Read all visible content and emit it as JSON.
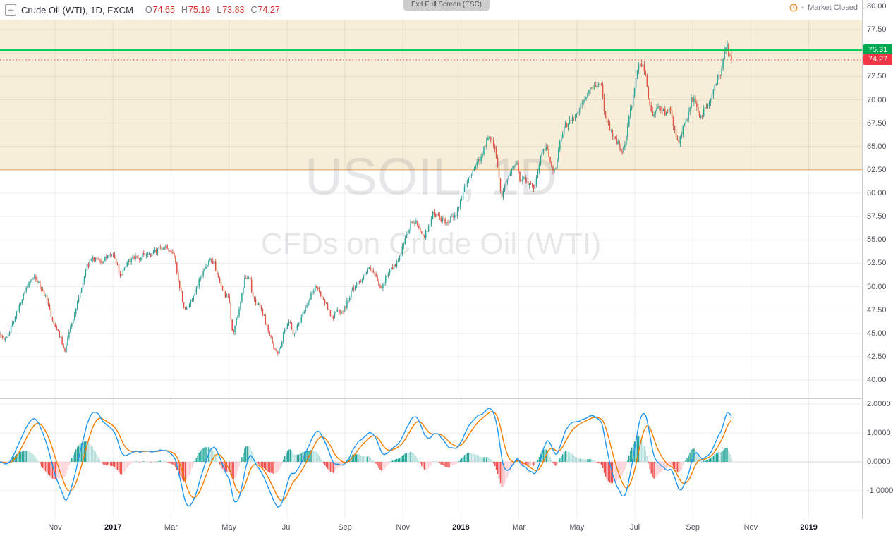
{
  "header": {
    "symbol_title": "Crude Oil (WTI), 1D, FXCM",
    "ohlc": {
      "o_label": "O",
      "o": "74.65",
      "h_label": "H",
      "h": "75.19",
      "l_label": "L",
      "l": "73.83",
      "c_label": "C",
      "c": "74.27"
    },
    "fullscreen_tooltip": "Exit Full Screen (ESC)",
    "market_status": "Market Closed",
    "market_status_bullet": "•",
    "market_status_color": "#f28e2a"
  },
  "watermark": {
    "line1": "USOIL, 1D",
    "line2": "CFDs on Crude Oil (WTI)"
  },
  "price_axis": {
    "ticks": [
      {
        "value": 80,
        "text": "80.00"
      },
      {
        "value": 77.5,
        "text": "77.50"
      },
      {
        "value": 72.5,
        "text": "72.50"
      },
      {
        "value": 70,
        "text": "70.00"
      },
      {
        "value": 67.5,
        "text": "67.50"
      },
      {
        "value": 65,
        "text": "65.00"
      },
      {
        "value": 62.5,
        "text": "62.50"
      },
      {
        "value": 60,
        "text": "60.00"
      },
      {
        "value": 57.5,
        "text": "57.50"
      },
      {
        "value": 55,
        "text": "55.00"
      },
      {
        "value": 52.5,
        "text": "52.50"
      },
      {
        "value": 50,
        "text": "50.00"
      },
      {
        "value": 47.5,
        "text": "47.50"
      },
      {
        "value": 45,
        "text": "45.00"
      },
      {
        "value": 42.5,
        "text": "42.50"
      },
      {
        "value": 40,
        "text": "40.00"
      }
    ],
    "badges": [
      {
        "text": "75.31",
        "value": 75.31,
        "color": "#00a94f"
      },
      {
        "text": "74.27",
        "value": 74.27,
        "color": "#f23645"
      }
    ]
  },
  "time_axis": {
    "labels": [
      {
        "text": "Nov",
        "t": 0
      },
      {
        "text": "2017",
        "t": 2,
        "year": true
      },
      {
        "text": "Mar",
        "t": 4
      },
      {
        "text": "May",
        "t": 6
      },
      {
        "text": "Jul",
        "t": 8
      },
      {
        "text": "Sep",
        "t": 10
      },
      {
        "text": "Nov",
        "t": 12
      },
      {
        "text": "2018",
        "t": 14,
        "year": true
      },
      {
        "text": "Mar",
        "t": 16
      },
      {
        "text": "May",
        "t": 18
      },
      {
        "text": "Jul",
        "t": 20
      },
      {
        "text": "Sep",
        "t": 22
      },
      {
        "text": "Nov",
        "t": 24
      },
      {
        "text": "2019",
        "t": 26,
        "year": true
      }
    ]
  },
  "chart_data": [
    {
      "type": "candlestick",
      "symbol": "USOIL",
      "interval": "1D",
      "exchange": "FXCM",
      "description": "CFDs on Crude Oil (WTI)",
      "ylim": [
        38,
        78.6
      ],
      "last_ohlc": [
        74.65,
        75.19,
        73.83,
        74.27
      ],
      "band": {
        "top": 80,
        "bottom": 62.5,
        "fill": "#f6eed8",
        "border": "#e0953f"
      },
      "levels": [
        {
          "value": 75.31,
          "color": "#00c853",
          "style": "solid",
          "width": 2
        },
        {
          "value": 74.27,
          "color": "#f23645",
          "style": "dotted",
          "width": 1
        }
      ],
      "colors": {
        "up": "#26a69a",
        "up_wick": "#1d7b72",
        "down": "#e35141",
        "down_wick": "#b03c30"
      },
      "anchors": [
        [
          -1.9,
          45.0
        ],
        [
          -1.72,
          44.2
        ],
        [
          -1.5,
          45.8
        ],
        [
          -1.28,
          47.6
        ],
        [
          -1.05,
          49.6
        ],
        [
          -0.85,
          50.6
        ],
        [
          -0.65,
          50.9
        ],
        [
          -0.5,
          49.8
        ],
        [
          -0.3,
          48.8
        ],
        [
          -0.12,
          46.8
        ],
        [
          0.05,
          45.4
        ],
        [
          0.2,
          44.4
        ],
        [
          0.33,
          43.1
        ],
        [
          0.45,
          44.6
        ],
        [
          0.6,
          46.4
        ],
        [
          0.75,
          47.9
        ],
        [
          0.9,
          49.6
        ],
        [
          1.05,
          51.9
        ],
        [
          1.25,
          52.9
        ],
        [
          1.45,
          53.1
        ],
        [
          1.65,
          52.6
        ],
        [
          1.85,
          53.7
        ],
        [
          2.05,
          53.2
        ],
        [
          2.25,
          51.1
        ],
        [
          2.45,
          52.4
        ],
        [
          2.65,
          53.1
        ],
        [
          2.85,
          52.9
        ],
        [
          3.05,
          53.5
        ],
        [
          3.3,
          53.4
        ],
        [
          3.55,
          54.0
        ],
        [
          3.8,
          54.2
        ],
        [
          4.0,
          53.8
        ],
        [
          4.15,
          52.7
        ],
        [
          4.3,
          49.9
        ],
        [
          4.45,
          47.7
        ],
        [
          4.6,
          47.9
        ],
        [
          4.75,
          48.6
        ],
        [
          4.95,
          50.4
        ],
        [
          5.15,
          52.0
        ],
        [
          5.35,
          52.9
        ],
        [
          5.5,
          52.5
        ],
        [
          5.65,
          50.6
        ],
        [
          5.85,
          49.2
        ],
        [
          6.0,
          48.6
        ],
        [
          6.12,
          44.9
        ],
        [
          6.25,
          46.3
        ],
        [
          6.4,
          48.6
        ],
        [
          6.55,
          50.8
        ],
        [
          6.7,
          51.1
        ],
        [
          6.82,
          48.9
        ],
        [
          6.95,
          48.3
        ],
        [
          7.1,
          47.7
        ],
        [
          7.25,
          46.3
        ],
        [
          7.4,
          44.9
        ],
        [
          7.55,
          43.4
        ],
        [
          7.68,
          42.7
        ],
        [
          7.8,
          43.9
        ],
        [
          7.95,
          45.8
        ],
        [
          8.1,
          46.1
        ],
        [
          8.22,
          44.6
        ],
        [
          8.35,
          45.6
        ],
        [
          8.5,
          46.7
        ],
        [
          8.65,
          47.9
        ],
        [
          8.8,
          49.0
        ],
        [
          9.0,
          50.1
        ],
        [
          9.15,
          49.2
        ],
        [
          9.3,
          48.3
        ],
        [
          9.45,
          47.4
        ],
        [
          9.6,
          46.6
        ],
        [
          9.75,
          47.6
        ],
        [
          9.9,
          47.2
        ],
        [
          10.05,
          48.1
        ],
        [
          10.2,
          49.4
        ],
        [
          10.4,
          50.3
        ],
        [
          10.6,
          50.9
        ],
        [
          10.8,
          51.9
        ],
        [
          10.95,
          51.6
        ],
        [
          11.1,
          50.7
        ],
        [
          11.25,
          49.6
        ],
        [
          11.4,
          50.9
        ],
        [
          11.55,
          51.9
        ],
        [
          11.7,
          52.2
        ],
        [
          11.85,
          52.7
        ],
        [
          12.0,
          54.3
        ],
        [
          12.15,
          55.6
        ],
        [
          12.3,
          57.0
        ],
        [
          12.45,
          56.8
        ],
        [
          12.6,
          56.0
        ],
        [
          12.75,
          55.3
        ],
        [
          12.9,
          56.7
        ],
        [
          13.05,
          57.9
        ],
        [
          13.2,
          57.5
        ],
        [
          13.35,
          57.2
        ],
        [
          13.5,
          56.6
        ],
        [
          13.65,
          57.2
        ],
        [
          13.8,
          57.5
        ],
        [
          13.95,
          59.0
        ],
        [
          14.1,
          60.2
        ],
        [
          14.25,
          61.4
        ],
        [
          14.45,
          62.8
        ],
        [
          14.65,
          63.7
        ],
        [
          14.85,
          65.2
        ],
        [
          15.0,
          66.2
        ],
        [
          15.1,
          65.6
        ],
        [
          15.25,
          63.6
        ],
        [
          15.4,
          59.3
        ],
        [
          15.5,
          60.9
        ],
        [
          15.65,
          61.7
        ],
        [
          15.8,
          62.7
        ],
        [
          15.95,
          63.1
        ],
        [
          16.05,
          61.2
        ],
        [
          16.2,
          61.8
        ],
        [
          16.35,
          61.0
        ],
        [
          16.5,
          60.5
        ],
        [
          16.65,
          62.4
        ],
        [
          16.8,
          64.4
        ],
        [
          16.95,
          65.0
        ],
        [
          17.1,
          63.2
        ],
        [
          17.25,
          62.3
        ],
        [
          17.4,
          65.1
        ],
        [
          17.55,
          66.8
        ],
        [
          17.7,
          67.7
        ],
        [
          17.85,
          68.1
        ],
        [
          18.0,
          68.4
        ],
        [
          18.15,
          69.3
        ],
        [
          18.35,
          70.6
        ],
        [
          18.55,
          71.3
        ],
        [
          18.7,
          71.9
        ],
        [
          18.85,
          71.3
        ],
        [
          18.95,
          68.9
        ],
        [
          19.1,
          67.3
        ],
        [
          19.25,
          66.1
        ],
        [
          19.4,
          65.4
        ],
        [
          19.55,
          64.3
        ],
        [
          19.7,
          65.6
        ],
        [
          19.8,
          68.2
        ],
        [
          19.95,
          70.3
        ],
        [
          20.1,
          73.2
        ],
        [
          20.2,
          73.9
        ],
        [
          20.35,
          73.3
        ],
        [
          20.45,
          70.6
        ],
        [
          20.6,
          68.1
        ],
        [
          20.75,
          69.4
        ],
        [
          20.9,
          68.9
        ],
        [
          21.05,
          68.7
        ],
        [
          21.2,
          68.9
        ],
        [
          21.35,
          67.1
        ],
        [
          21.5,
          65.2
        ],
        [
          21.65,
          66.8
        ],
        [
          21.8,
          68.1
        ],
        [
          21.95,
          69.9
        ],
        [
          22.1,
          69.8
        ],
        [
          22.25,
          68.0
        ],
        [
          22.4,
          68.9
        ],
        [
          22.55,
          69.6
        ],
        [
          22.7,
          70.9
        ],
        [
          22.85,
          71.9
        ],
        [
          23.0,
          73.4
        ],
        [
          23.1,
          75.6
        ],
        [
          23.17,
          76.3
        ],
        [
          23.25,
          74.8
        ],
        [
          23.33,
          74.27
        ]
      ]
    },
    {
      "type": "macd",
      "ticks": [
        {
          "value": 2,
          "text": "2.0000"
        },
        {
          "value": 1,
          "text": "1.0000"
        },
        {
          "value": 0,
          "text": "0.0000"
        },
        {
          "value": -1,
          "text": "-1.0000"
        }
      ],
      "ylim": [
        -1.95,
        2.2
      ],
      "colors": {
        "macd": "#2196f3",
        "signal": "#f57c00",
        "grow_above": "#26a69a",
        "fall_above": "#b2dfdb",
        "grow_below": "#ffcdd2",
        "fall_below": "#ef5350"
      }
    }
  ]
}
